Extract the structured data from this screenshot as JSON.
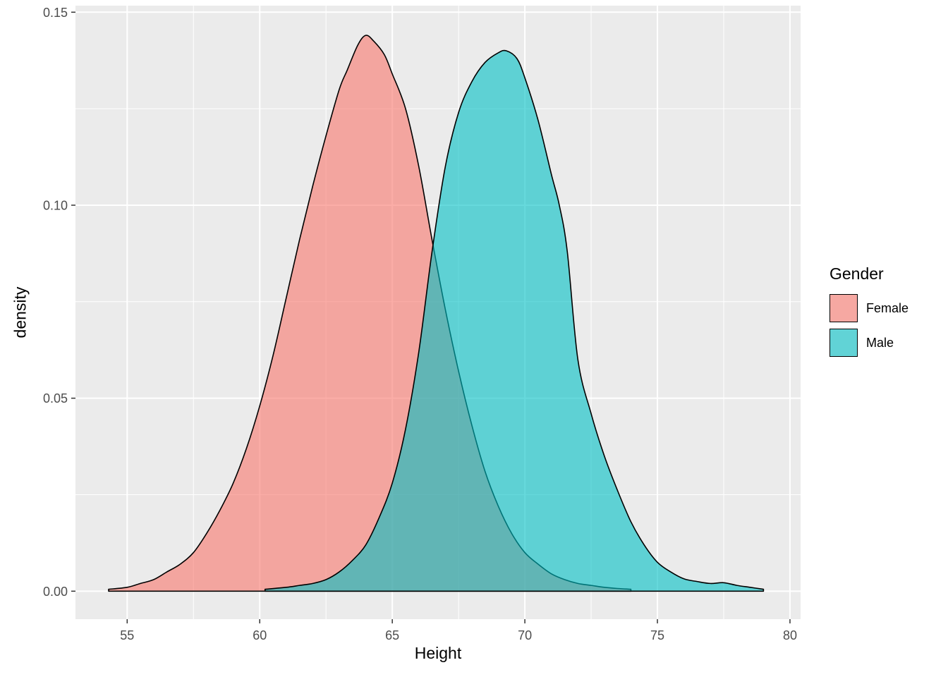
{
  "chart_data": {
    "type": "area",
    "subtype": "density",
    "xlabel": "Height",
    "ylabel": "density",
    "xlim": [
      53.05,
      80.4
    ],
    "ylim": [
      -0.00725,
      0.1517
    ],
    "x_ticks": [
      55,
      60,
      65,
      70,
      75,
      80
    ],
    "x_tick_labels": [
      "55",
      "60",
      "65",
      "70",
      "75",
      "80"
    ],
    "x_minor_ticks": [
      57.5,
      62.5,
      67.5,
      72.5,
      77.5
    ],
    "y_ticks": [
      0,
      0.05,
      0.1,
      0.15
    ],
    "y_tick_labels": [
      "0.00",
      "0.05",
      "0.10",
      "0.15"
    ],
    "y_minor_ticks": [
      0.025,
      0.075,
      0.125
    ],
    "grid": true,
    "panel_background": "#EBEBEB",
    "grid_color": "#FFFFFF",
    "axis_text_color": "#4D4D4D",
    "axis_title_color": "#000000",
    "legend": {
      "title": "Gender",
      "position": "right",
      "key_background": "#F2F2F2"
    },
    "series": [
      {
        "name": "Female",
        "fill": "#F8766D",
        "stroke": "#000000",
        "fill_alpha": 0.6,
        "x": [
          54.3,
          55,
          55.5,
          56,
          56.5,
          57,
          57.5,
          58,
          58.5,
          59,
          59.5,
          60,
          60.5,
          61,
          61.5,
          62,
          62.5,
          63,
          63.3,
          63.7,
          64,
          64.3,
          64.7,
          65,
          65.5,
          66,
          66.5,
          67,
          67.5,
          68,
          68.5,
          69,
          69.5,
          70,
          70.5,
          71,
          71.5,
          72,
          72.5,
          73,
          73.5,
          74
        ],
        "y": [
          0.0005,
          0.001,
          0.002,
          0.003,
          0.005,
          0.007,
          0.01,
          0.015,
          0.021,
          0.028,
          0.037,
          0.048,
          0.061,
          0.076,
          0.091,
          0.105,
          0.118,
          0.13,
          0.135,
          0.1415,
          0.144,
          0.1425,
          0.139,
          0.134,
          0.125,
          0.11,
          0.091,
          0.073,
          0.057,
          0.043,
          0.031,
          0.022,
          0.015,
          0.01,
          0.007,
          0.0045,
          0.003,
          0.002,
          0.0015,
          0.001,
          0.0007,
          0.0005
        ]
      },
      {
        "name": "Male",
        "fill": "#00BFC4",
        "stroke": "#000000",
        "fill_alpha": 0.6,
        "x": [
          60.2,
          61,
          61.5,
          62,
          62.5,
          63,
          63.5,
          64,
          64.5,
          65,
          65.5,
          66,
          66.5,
          67,
          67.5,
          68,
          68.5,
          69,
          69.3,
          69.7,
          70,
          70.5,
          71,
          71.3,
          71.6,
          72,
          72.5,
          73,
          73.5,
          74,
          74.5,
          75,
          75.5,
          76,
          76.5,
          77,
          77.5,
          78,
          78.5,
          79
        ],
        "y": [
          0.0005,
          0.001,
          0.0015,
          0.002,
          0.003,
          0.005,
          0.008,
          0.012,
          0.019,
          0.028,
          0.042,
          0.062,
          0.088,
          0.11,
          0.124,
          0.132,
          0.137,
          0.1395,
          0.14,
          0.138,
          0.133,
          0.122,
          0.108,
          0.1,
          0.088,
          0.06,
          0.046,
          0.035,
          0.026,
          0.018,
          0.012,
          0.0075,
          0.005,
          0.0032,
          0.0025,
          0.002,
          0.0022,
          0.0015,
          0.001,
          0.0005
        ]
      }
    ]
  }
}
